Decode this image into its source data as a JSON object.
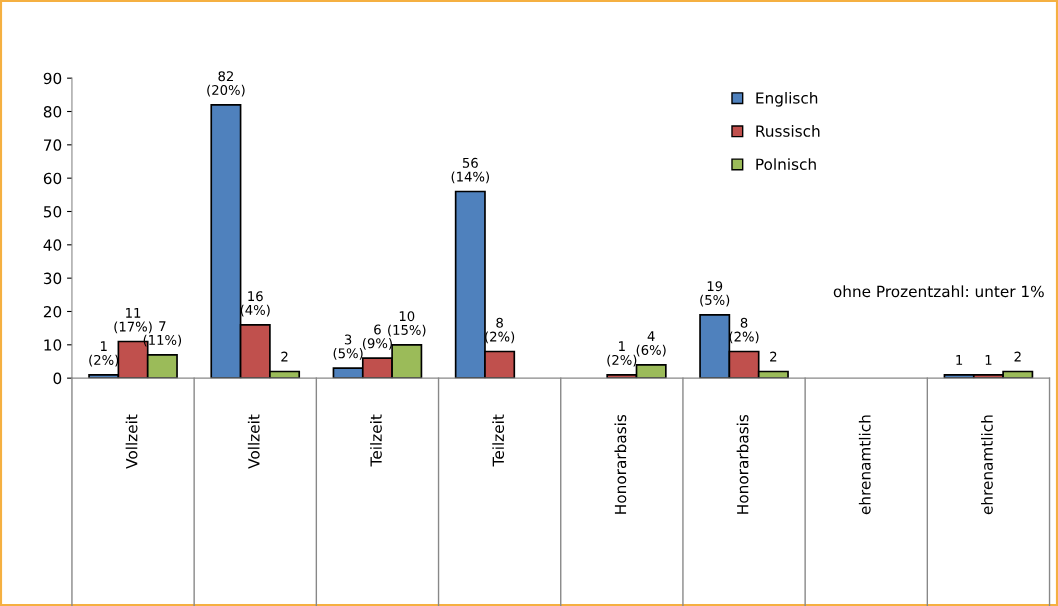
{
  "chart_data": {
    "type": "bar",
    "categories": [
      "Vollzeit\nmit Mig.",
      "Vollzeit\nohne Mig.",
      "Teilzeit\nmit Mig.",
      "Teilzeit\nohne Mig.",
      "Honorarbasis\nmit Mig.",
      "Honorarbasis\nohne Mig.",
      "ehrenamtlich\nmit Mig.",
      "ehrenamtlich\nohne Mig."
    ],
    "series": [
      {
        "name": "Englisch",
        "color": "#4f81bd",
        "values": [
          1,
          82,
          3,
          56,
          null,
          19,
          null,
          1
        ],
        "value_labels": [
          "1\n(2%)",
          "82\n(20%)",
          "3\n(5%)",
          "56\n(14%)",
          null,
          "19\n(5%)",
          null,
          "1"
        ]
      },
      {
        "name": "Russisch",
        "color": "#c0504d",
        "values": [
          11,
          16,
          6,
          8,
          1,
          8,
          null,
          1
        ],
        "value_labels": [
          "11\n(17%)",
          "16\n(4%)",
          "6\n(9%)",
          "8\n(2%)",
          "1\n(2%)",
          "8\n(2%)",
          null,
          "1"
        ]
      },
      {
        "name": "Polnisch",
        "color": "#9bbb59",
        "values": [
          7,
          2,
          10,
          null,
          4,
          2,
          null,
          2
        ],
        "value_labels": [
          "7\n(11%)",
          "2",
          "10\n(15%)",
          null,
          "4\n(6%)",
          "2",
          null,
          "2"
        ]
      }
    ],
    "ylim": [
      0,
      90
    ],
    "yticks": [
      0,
      10,
      20,
      30,
      40,
      50,
      60,
      70,
      80,
      90
    ],
    "grid": false,
    "legend": "top right",
    "annotations": [
      "ohne Prozentzahl: unter 1%"
    ]
  }
}
